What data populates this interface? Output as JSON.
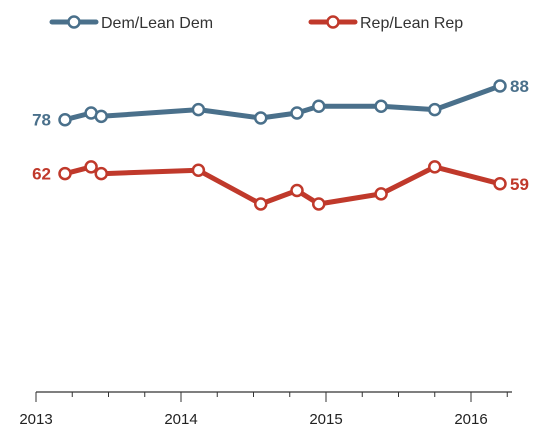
{
  "chart_data": {
    "type": "line",
    "title": "",
    "xlabel": "",
    "ylabel": "",
    "x_ticks": [
      "2013",
      "2014",
      "2015",
      "2016"
    ],
    "xlim": [
      2013.0,
      2016.33
    ],
    "ylim": [
      35,
      94
    ],
    "grid": false,
    "legend_position": "top",
    "series": [
      {
        "name": "Dem/Lean Dem",
        "color": "#4a708b",
        "x": [
          2013.2,
          2013.38,
          2013.45,
          2014.12,
          2014.55,
          2014.8,
          2014.95,
          2015.38,
          2015.75,
          2016.2
        ],
        "y": [
          78,
          80,
          79,
          81,
          78.5,
          80,
          82,
          82,
          81,
          88
        ],
        "start_label": "78",
        "end_label": "88"
      },
      {
        "name": "Rep/Lean Rep",
        "color": "#c0392b",
        "x": [
          2013.2,
          2013.38,
          2013.45,
          2014.12,
          2014.55,
          2014.8,
          2014.95,
          2015.38,
          2015.75,
          2016.2
        ],
        "y": [
          62,
          64,
          62,
          63,
          53,
          57,
          53,
          56,
          64,
          59
        ],
        "start_label": "62",
        "end_label": "59"
      }
    ]
  }
}
